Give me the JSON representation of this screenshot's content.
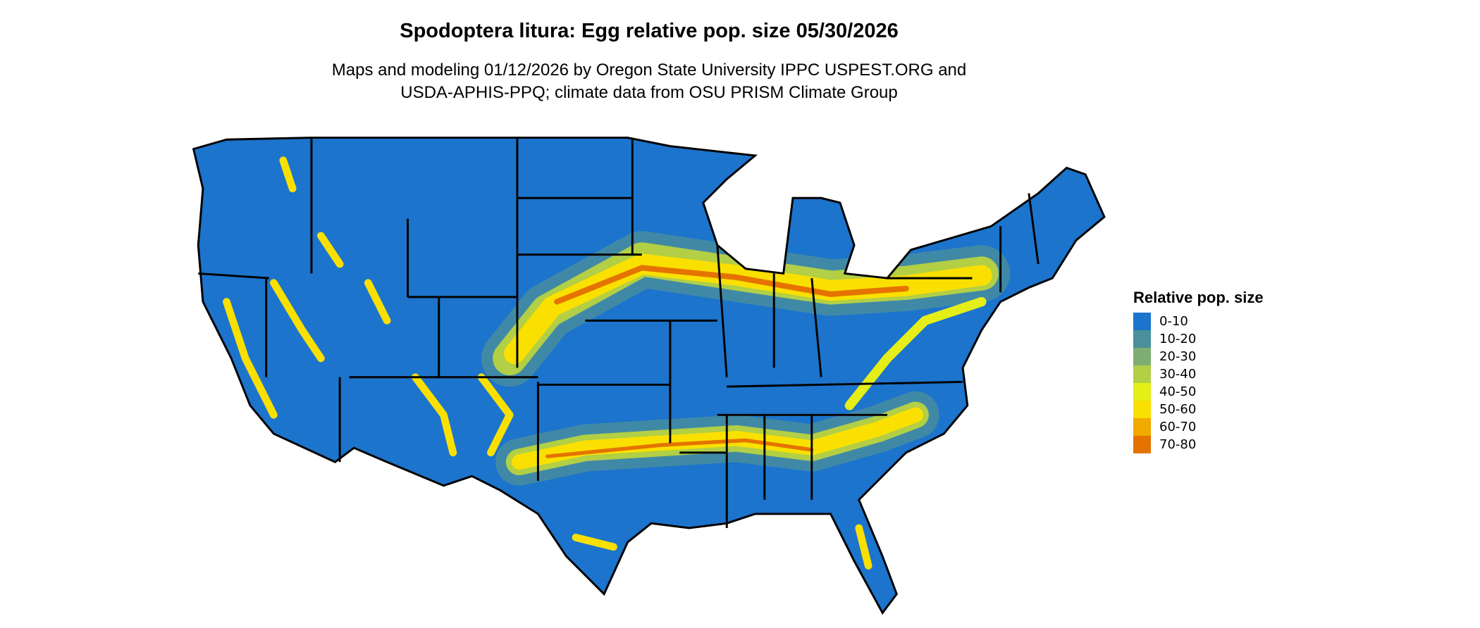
{
  "title": "Spodoptera litura: Egg relative pop. size 05/30/2026",
  "subtitle_line1": "Maps and modeling 01/12/2026 by Oregon State University IPPC USPEST.ORG and",
  "subtitle_line2": "USDA-APHIS-PPQ; climate data from OSU PRISM Climate Group",
  "legend": {
    "title": "Relative pop. size",
    "items": [
      {
        "label": "0-10",
        "color": "#1C74CC"
      },
      {
        "label": "10-20",
        "color": "#4A8F9C"
      },
      {
        "label": "20-30",
        "color": "#7DAF72"
      },
      {
        "label": "30-40",
        "color": "#B2CF45"
      },
      {
        "label": "40-50",
        "color": "#E5EE17"
      },
      {
        "label": "50-60",
        "color": "#FAE000"
      },
      {
        "label": "60-70",
        "color": "#F0AA00"
      },
      {
        "label": "70-80",
        "color": "#E57300"
      }
    ]
  },
  "map": {
    "region": "Contiguous United States",
    "borders": "state",
    "border_color": "#000000"
  }
}
